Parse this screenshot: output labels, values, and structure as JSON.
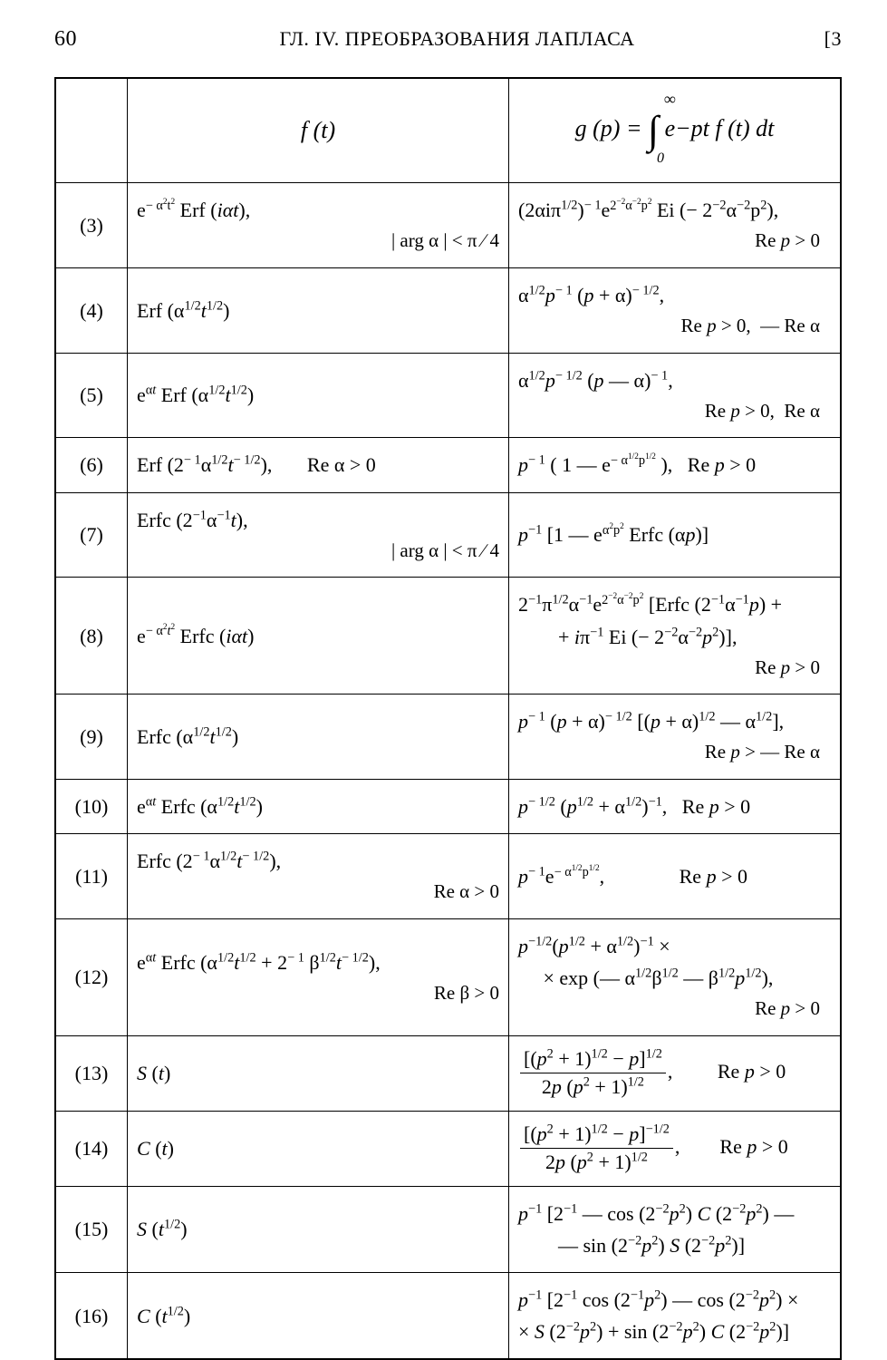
{
  "header": {
    "page_left": "60",
    "title": "ГЛ. IV. ПРЕОБРАЗОВАНИЯ ЛАПЛАСА",
    "page_right": "[3"
  },
  "table": {
    "col_f_header": "f (t)",
    "col_g_header_prefix": "g (p) = ",
    "col_g_header_integrand": "e−pt f (t) dt",
    "int_lower": "0",
    "int_upper": "∞"
  },
  "rows": [
    {
      "idx": "(3)",
      "f_main": "e<sup>− α<sup>2</sup>t<sup>2</sup></sup> Erf (<i>iαt</i>),",
      "f_cond": "| arg α | &lt; π ∕ 4",
      "g_main": "(2αiπ<sup>1/2</sup>)<sup>− 1</sup>e<sup>2<sup>−2</sup>α<sup>−2</sup>p<sup>2</sup></sup> Ei (− 2<sup>−2</sup>α<sup>−2</sup>p<sup>2</sup>),",
      "g_cond": "Re <i>p</i> &gt; 0"
    },
    {
      "idx": "(4)",
      "f_main": "Erf (α<sup>1/2</sup><i>t</i><sup>1/2</sup>)",
      "f_cond": "",
      "g_main": "α<sup>1/2</sup><i>p</i><sup>− 1</sup> (<i>p</i> + α)<sup>− 1/2</sup>,",
      "g_cond": "Re <i>p</i> &gt; 0, &nbsp;— Re α"
    },
    {
      "idx": "(5)",
      "f_main": "e<sup>α<i>t</i></sup> Erf (α<sup>1/2</sup><i>t</i><sup>1/2</sup>)",
      "f_cond": "",
      "g_main": "α<sup>1/2</sup><i>p</i><sup>− 1/2</sup> (<i>p</i> — α)<sup>− 1</sup>,",
      "g_cond": "Re <i>p</i> &gt; 0, &nbsp;Re α"
    },
    {
      "idx": "(6)",
      "f_main": "Erf (2<sup>− 1</sup>α<sup>1/2</sup><i>t</i><sup>− 1/2</sup>),&nbsp;&nbsp;&nbsp;&nbsp;&nbsp;&nbsp; Re α &gt; 0",
      "f_cond": "",
      "g_main": "<i>p</i><sup>− 1</sup> ( 1 — e<sup>− α<sup>1/2</sup>p<sup>1/2</sup></sup> ), &nbsp; Re <i>p</i> &gt; 0",
      "g_cond": ""
    },
    {
      "idx": "(7)",
      "f_main": "Erfc (2<sup>−1</sup>α<sup>−1</sup><i>t</i>),",
      "f_cond": "| arg α | &lt; π ∕ 4",
      "g_main": "<i>p</i><sup>−1</sup> [1 — e<sup>α<sup>2</sup>p<sup>2</sup></sup> Erfc (α<i>p</i>)]",
      "g_cond": ""
    },
    {
      "idx": "(8)",
      "f_main": "e<sup>− α<sup>2</sup><i>t</i><sup>2</sup></sup> Erfc (<i>iαt</i>)",
      "f_cond": "",
      "g_main": "2<sup>−1</sup>π<sup>1/2</sup>α<sup>−1</sup>e<sup>2<sup>−2</sup>α<sup>−2</sup>p<sup>2</sup></sup> [Erfc (2<sup>−1</sup>α<sup>−1</sup><i>p</i>) +<br>&nbsp;&nbsp;&nbsp;&nbsp;&nbsp;&nbsp;&nbsp;&nbsp;+ <i>i</i>π<sup>−1</sup> Ei (− 2<sup>−2</sup>α<sup>−2</sup><i>p</i><sup>2</sup>)],",
      "g_cond": "Re <i>p</i> &gt; 0"
    },
    {
      "idx": "(9)",
      "f_main": "Erfc (α<sup>1/2</sup><i>t</i><sup>1/2</sup>)",
      "f_cond": "",
      "g_main": "<i>p</i><sup>− 1</sup> (<i>p</i> + α)<sup>− 1/2</sup> [(<i>p</i> + α)<sup>1/2</sup> — α<sup>1/2</sup>],",
      "g_cond": "Re <i>p</i> &gt; — Re α"
    },
    {
      "idx": "(10)",
      "f_main": "e<sup>α<i>t</i></sup> Erfc (α<sup>1/2</sup><i>t</i><sup>1/2</sup>)",
      "f_cond": "",
      "g_main": "<i>p</i><sup>− 1/2</sup> (<i>p</i><sup>1/2</sup> + α<sup>1/2</sup>)<sup>−1</sup>, &nbsp; Re <i>p</i> &gt; 0",
      "g_cond": ""
    },
    {
      "idx": "(11)",
      "f_main": "Erfc (2<sup>− 1</sup>α<sup>1/2</sup><i>t</i><sup>− 1/2</sup>),",
      "f_cond": "Re α &gt; 0",
      "g_main": "<i>p</i><sup>− 1</sup>e<sup>− α<sup>1/2</sup>p<sup>1/2</sup></sup>,&nbsp;&nbsp;&nbsp;&nbsp;&nbsp;&nbsp;&nbsp;&nbsp;&nbsp;&nbsp;&nbsp;&nbsp;&nbsp;&nbsp; Re <i>p</i> &gt; 0",
      "g_cond": ""
    },
    {
      "idx": "(12)",
      "f_main": "e<sup>α<i>t</i></sup> Erfc (α<sup>1/2</sup><i>t</i><sup>1/2</sup> + 2<sup>− 1</sup> β<sup>1/2</sup><i>t</i><sup>− 1/2</sup>),",
      "f_cond": "Re β &gt; 0",
      "g_main": "<i>p</i><sup>−1/2</sup>(<i>p</i><sup>1/2</sup> + α<sup>1/2</sup>)<sup>−1</sup> ×<br>&nbsp;&nbsp;&nbsp;&nbsp;&nbsp;× exp (— α<sup>1/2</sup>β<sup>1/2</sup> — β<sup>1/2</sup><i>p</i><sup>1/2</sup>),",
      "g_cond": "Re <i>p</i> &gt; 0"
    },
    {
      "idx": "(13)",
      "f_main": "<i>S</i> (<i>t</i>)",
      "f_cond": "",
      "g_frac_num": "[(<i>p</i><sup>2</sup> + 1)<sup>1/2</sup> − <i>p</i>]<sup>1/2</sup>",
      "g_frac_den": "2<i>p</i> (<i>p</i><sup>2</sup> + 1)<sup>1/2</sup>",
      "g_after": ",&nbsp;&nbsp;&nbsp;&nbsp;&nbsp;&nbsp;&nbsp;&nbsp; Re <i>p</i> &gt; 0"
    },
    {
      "idx": "(14)",
      "f_main": "<i>C</i> (<i>t</i>)",
      "f_cond": "",
      "g_frac_num": "[(<i>p</i><sup>2</sup> + 1)<sup>1/2</sup> − <i>p</i>]<sup>−1/2</sup>",
      "g_frac_den": "2<i>p</i> (<i>p</i><sup>2</sup> + 1)<sup>1/2</sup>",
      "g_after": ",&nbsp;&nbsp;&nbsp;&nbsp;&nbsp;&nbsp;&nbsp; Re <i>p</i> &gt; 0"
    },
    {
      "idx": "(15)",
      "f_main": "<i>S</i> (<i>t</i><sup>1/2</sup>)",
      "f_cond": "",
      "g_main": "<i>p</i><sup>−1</sup> [2<sup>−1</sup> — cos (2<sup>−2</sup><i>p</i><sup>2</sup>) <i>C</i> (2<sup>−2</sup><i>p</i><sup>2</sup>) —<br>&nbsp;&nbsp;&nbsp;&nbsp;&nbsp;&nbsp;&nbsp;&nbsp;— sin (2<sup>−2</sup><i>p</i><sup>2</sup>) <i>S</i> (2<sup>−2</sup><i>p</i><sup>2</sup>)]",
      "g_cond": ""
    },
    {
      "idx": "(16)",
      "f_main": "<i>C</i> (<i>t</i><sup>1/2</sup>)",
      "f_cond": "",
      "g_main": "<i>p</i><sup>−1</sup> [2<sup>−1</sup> cos (2<sup>−1</sup><i>p</i><sup>2</sup>) — cos (2<sup>−2</sup><i>p</i><sup>2</sup>) ×<br>× <i>S</i> (2<sup>−2</sup><i>p</i><sup>2</sup>) + sin (2<sup>−2</sup><i>p</i><sup>2</sup>) <i>C</i> (2<sup>−2</sup><i>p</i><sup>2</sup>)]",
      "g_cond": ""
    }
  ]
}
